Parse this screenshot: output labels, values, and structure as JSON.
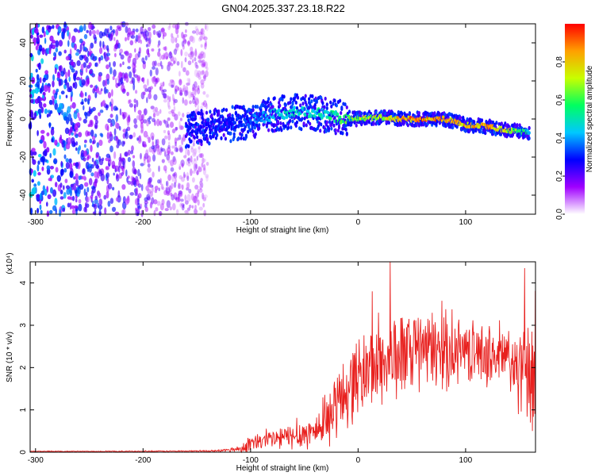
{
  "title": "GN04.2025.337.23.18.R22",
  "colors": {
    "snr_line": "#e8201e",
    "frame": "#000000"
  },
  "chart_data": [
    {
      "type": "heatmap",
      "name": "spectrogram",
      "xlabel": "Height of straight line (km)",
      "ylabel": "Frequency (Hz)",
      "xlim": [
        -305,
        165
      ],
      "ylim": [
        -50,
        50
      ],
      "x_ticks": [
        -300,
        -200,
        -100,
        0,
        100
      ],
      "x_tick_labels": [
        "-300",
        "-200",
        "-100",
        "0",
        "100"
      ],
      "y_ticks": [
        -40,
        -20,
        0,
        20,
        40
      ],
      "y_tick_labels": [
        "-40",
        "-20",
        "0",
        "20",
        "40"
      ],
      "colorbar": {
        "label": "Normalized spectral amplitude",
        "range": [
          0,
          1
        ],
        "ticks": [
          0.0,
          0.2,
          0.4,
          0.6,
          0.8
        ],
        "tick_labels": [
          "0.0",
          "0.2",
          "0.4",
          "0.6",
          "0.8"
        ],
        "colormap": [
          "#ffffff",
          "#a000ff",
          "#0000ff",
          "#00c8ff",
          "#00ff60",
          "#c8ff00",
          "#ffa000",
          "#ff0000"
        ]
      },
      "ridge": {
        "x": [
          -160,
          -140,
          -120,
          -100,
          -80,
          -60,
          -40,
          -20,
          0,
          20,
          40,
          60,
          80,
          100,
          120,
          140,
          160
        ],
        "freq": [
          -6,
          -4,
          -3,
          -1,
          2,
          4,
          3,
          1,
          0,
          1,
          0,
          0,
          0,
          -3,
          -4,
          -6,
          -7
        ],
        "amplitude": [
          0.35,
          0.3,
          0.3,
          0.35,
          0.45,
          0.5,
          0.5,
          0.55,
          0.7,
          0.7,
          0.85,
          0.9,
          0.9,
          0.85,
          0.85,
          0.75,
          0.5
        ]
      },
      "noise_region": {
        "x_from": -305,
        "x_to": -140,
        "level": 0.15
      }
    },
    {
      "type": "line",
      "name": "snr",
      "xlabel": "Height of straight line (km)",
      "ylabel": "SNR (10 * v/v)",
      "ylabel_scale": "(x10⁴)",
      "xlim": [
        -305,
        165
      ],
      "ylim": [
        0,
        4.5
      ],
      "x_ticks": [
        -300,
        -200,
        -100,
        0,
        100
      ],
      "x_tick_labels": [
        "-300",
        "-200",
        "-100",
        "0",
        "100"
      ],
      "y_ticks": [
        0,
        1,
        2,
        3,
        4
      ],
      "y_tick_labels": [
        "0",
        "1",
        "2",
        "3",
        "4"
      ],
      "envelope": {
        "x": [
          -305,
          -200,
          -130,
          -110,
          -100,
          -80,
          -60,
          -40,
          -30,
          -20,
          -10,
          0,
          20,
          40,
          60,
          80,
          100,
          120,
          140,
          150,
          160,
          165
        ],
        "mean": [
          0.02,
          0.02,
          0.03,
          0.08,
          0.2,
          0.3,
          0.38,
          0.5,
          0.7,
          1.1,
          1.5,
          1.8,
          2.1,
          2.3,
          2.4,
          2.4,
          2.4,
          2.3,
          2.2,
          1.9,
          1.6,
          2.0
        ],
        "spread": [
          0.01,
          0.01,
          0.02,
          0.08,
          0.2,
          0.25,
          0.3,
          0.4,
          0.5,
          0.8,
          0.9,
          0.9,
          1.0,
          1.0,
          0.9,
          0.9,
          0.7,
          0.7,
          0.8,
          1.0,
          1.3,
          1.2
        ]
      },
      "peaks": [
        {
          "x": 30,
          "y": 4.5
        },
        {
          "x": 13,
          "y": 3.8
        },
        {
          "x": 155,
          "y": 4.35
        },
        {
          "x": 162,
          "y": 0.5
        }
      ]
    }
  ]
}
